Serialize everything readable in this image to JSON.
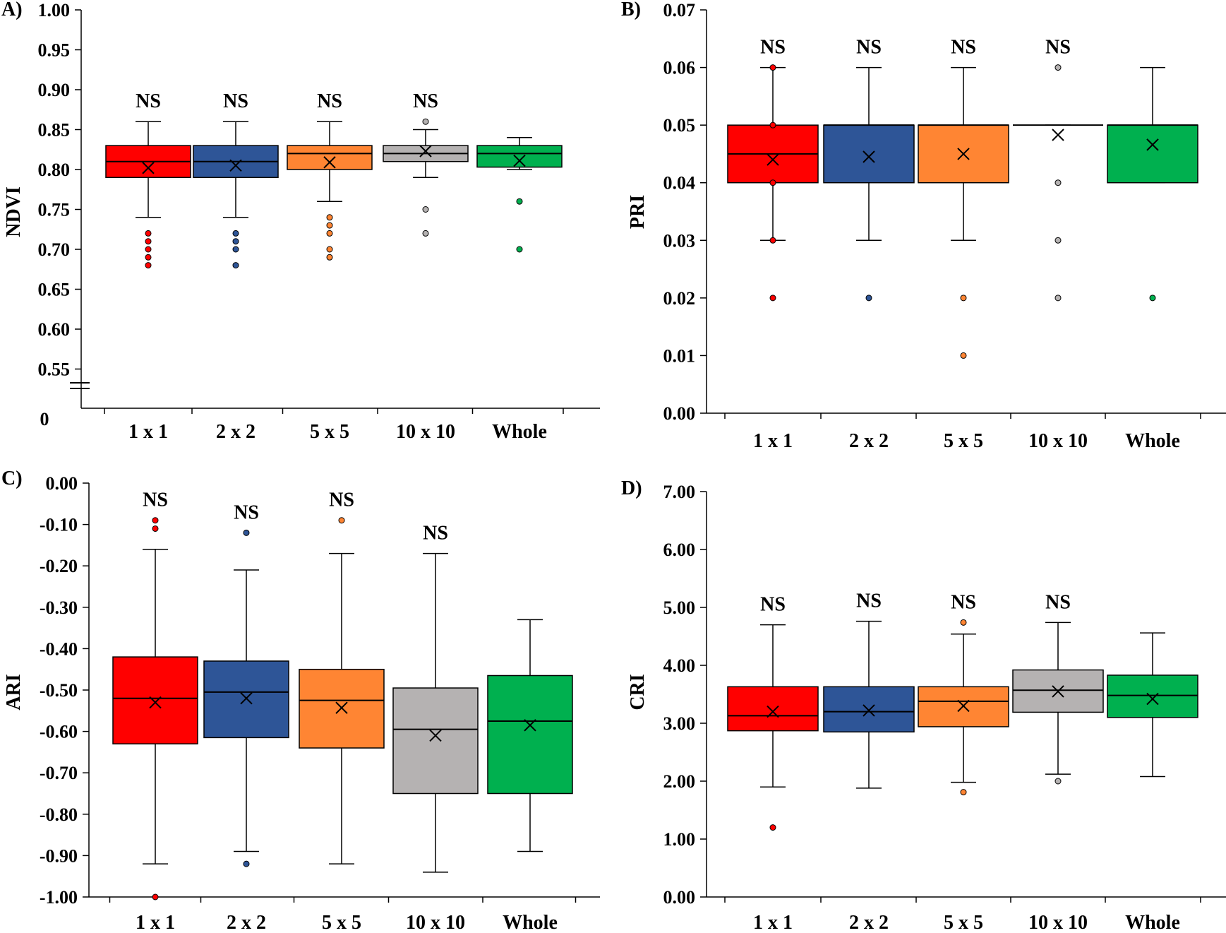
{
  "colors": {
    "1 x 1": "#ff0000",
    "2 x 2": "#2e5597",
    "5 x 5": "#ff8533",
    "10 x 10": "#b5b2b2",
    "Whole": "#00b04f"
  },
  "chart_data": [
    {
      "id": "A",
      "type": "box",
      "panel_label": "A)",
      "ylabel": "NDVI",
      "ylim": [
        0.5,
        1.0
      ],
      "yticks": [
        0.55,
        0.6,
        0.65,
        0.7,
        0.75,
        0.8,
        0.85,
        0.9,
        0.95,
        1.0
      ],
      "ytick_labels": [
        "0.55",
        "0.60",
        "0.65",
        "0.70",
        "0.75",
        "0.80",
        "0.85",
        "0.90",
        "0.95",
        "1.00"
      ],
      "axis_break": true,
      "axis_break_label": "0",
      "categories": [
        "1 x 1",
        "2 x 2",
        "5 x 5",
        "10 x 10",
        "Whole"
      ],
      "boxes": [
        {
          "category": "1 x 1",
          "whisker_low": 0.74,
          "q1": 0.79,
          "median": 0.81,
          "q3": 0.83,
          "whisker_high": 0.86,
          "mean": 0.802,
          "outliers": [
            0.72,
            0.71,
            0.7,
            0.69,
            0.68
          ],
          "annotation": "NS"
        },
        {
          "category": "2 x 2",
          "whisker_low": 0.74,
          "q1": 0.79,
          "median": 0.81,
          "q3": 0.83,
          "whisker_high": 0.86,
          "mean": 0.805,
          "outliers": [
            0.72,
            0.71,
            0.7,
            0.68
          ],
          "annotation": "NS"
        },
        {
          "category": "5 x 5",
          "whisker_low": 0.76,
          "q1": 0.8,
          "median": 0.82,
          "q3": 0.83,
          "whisker_high": 0.86,
          "mean": 0.809,
          "outliers": [
            0.74,
            0.73,
            0.72,
            0.7,
            0.69
          ],
          "annotation": "NS"
        },
        {
          "category": "10 x 10",
          "whisker_low": 0.79,
          "q1": 0.81,
          "median": 0.82,
          "q3": 0.83,
          "whisker_high": 0.85,
          "mean": 0.823,
          "outliers": [
            0.86,
            0.75,
            0.72
          ],
          "annotation": "NS"
        },
        {
          "category": "Whole",
          "whisker_low": 0.8,
          "q1": 0.803,
          "median": 0.82,
          "q3": 0.83,
          "whisker_high": 0.84,
          "mean": 0.811,
          "outliers": [
            0.76,
            0.7
          ],
          "annotation": ""
        }
      ]
    },
    {
      "id": "B",
      "type": "box",
      "panel_label": "B)",
      "ylabel": "PRI",
      "ylim": [
        0.0,
        0.07
      ],
      "yticks": [
        0.0,
        0.01,
        0.02,
        0.03,
        0.04,
        0.05,
        0.06,
        0.07
      ],
      "ytick_labels": [
        "0.00",
        "0.01",
        "0.02",
        "0.03",
        "0.04",
        "0.05",
        "0.06",
        "0.07"
      ],
      "categories": [
        "1 x 1",
        "2 x 2",
        "5 x 5",
        "10 x 10",
        "Whole"
      ],
      "boxes": [
        {
          "category": "1 x 1",
          "whisker_low": 0.03,
          "q1": 0.04,
          "median": 0.045,
          "q3": 0.05,
          "whisker_high": 0.06,
          "mean": 0.044,
          "outliers": [
            0.06,
            0.05,
            0.04,
            0.03,
            0.02
          ],
          "annotation": "NS"
        },
        {
          "category": "2 x 2",
          "whisker_low": 0.03,
          "q1": 0.04,
          "median": 0.05,
          "q3": 0.05,
          "whisker_high": 0.06,
          "mean": 0.0445,
          "outliers": [
            0.02
          ],
          "annotation": "NS"
        },
        {
          "category": "5 x 5",
          "whisker_low": 0.03,
          "q1": 0.04,
          "median": 0.05,
          "q3": 0.05,
          "whisker_high": 0.06,
          "mean": 0.045,
          "outliers": [
            0.02,
            0.01
          ],
          "annotation": "NS"
        },
        {
          "category": "10 x 10",
          "whisker_low": 0.05,
          "q1": 0.05,
          "median": 0.05,
          "q3": 0.05,
          "whisker_high": 0.05,
          "mean": 0.0483,
          "outliers": [
            0.06,
            0.04,
            0.03,
            0.02
          ],
          "annotation": "NS"
        },
        {
          "category": "Whole",
          "whisker_low": 0.04,
          "q1": 0.04,
          "median": 0.05,
          "q3": 0.05,
          "whisker_high": 0.06,
          "mean": 0.0466,
          "outliers": [
            0.02
          ],
          "annotation": ""
        }
      ]
    },
    {
      "id": "C",
      "type": "box",
      "panel_label": "C)",
      "ylabel": "ARI",
      "ylim": [
        -1.0,
        0.0
      ],
      "yticks": [
        0.0,
        -0.1,
        -0.2,
        -0.3,
        -0.4,
        -0.5,
        -0.6,
        -0.7,
        -0.8,
        -0.9,
        -1.0
      ],
      "ytick_labels": [
        "0.00",
        "-0.10",
        "-0.20",
        "-0.30",
        "-0.40",
        "-0.50",
        "-0.60",
        "-0.70",
        "-0.80",
        "-0.90",
        "-1.00"
      ],
      "categories": [
        "1 x 1",
        "2 x 2",
        "5 x 5",
        "10 x 10",
        "Whole"
      ],
      "boxes": [
        {
          "category": "1 x 1",
          "whisker_low": -0.92,
          "q1": -0.63,
          "median": -0.52,
          "q3": -0.42,
          "whisker_high": -0.16,
          "mean": -0.53,
          "outliers": [
            -0.09,
            -0.11,
            -1.0
          ],
          "annotation": "NS"
        },
        {
          "category": "2 x 2",
          "whisker_low": -0.89,
          "q1": -0.615,
          "median": -0.505,
          "q3": -0.43,
          "whisker_high": -0.21,
          "mean": -0.52,
          "outliers": [
            -0.12,
            -0.92
          ],
          "annotation": "NS"
        },
        {
          "category": "5 x 5",
          "whisker_low": -0.92,
          "q1": -0.64,
          "median": -0.525,
          "q3": -0.45,
          "whisker_high": -0.17,
          "mean": -0.543,
          "outliers": [
            -0.09
          ],
          "annotation": "NS"
        },
        {
          "category": "10 x 10",
          "whisker_low": -0.94,
          "q1": -0.75,
          "median": -0.595,
          "q3": -0.495,
          "whisker_high": -0.17,
          "mean": -0.61,
          "outliers": [],
          "annotation": "NS"
        },
        {
          "category": "Whole",
          "whisker_low": -0.89,
          "q1": -0.75,
          "median": -0.575,
          "q3": -0.465,
          "whisker_high": -0.33,
          "mean": -0.585,
          "outliers": [],
          "annotation": ""
        }
      ]
    },
    {
      "id": "D",
      "type": "box",
      "panel_label": "D)",
      "ylabel": "CRI",
      "ylim": [
        0.0,
        7.0
      ],
      "yticks": [
        0,
        1,
        2,
        3,
        4,
        5,
        6,
        7
      ],
      "ytick_labels": [
        "0.00",
        "1.00",
        "2.00",
        "3.00",
        "4.00",
        "5.00",
        "6.00",
        "7.00"
      ],
      "categories": [
        "1 x 1",
        "2 x 2",
        "5 x 5",
        "10 x 10",
        "Whole"
      ],
      "boxes": [
        {
          "category": "1 x 1",
          "whisker_low": 1.9,
          "q1": 2.87,
          "median": 3.13,
          "q3": 3.63,
          "whisker_high": 4.7,
          "mean": 3.2,
          "outliers": [
            1.2
          ],
          "annotation": "NS"
        },
        {
          "category": "2 x 2",
          "whisker_low": 1.88,
          "q1": 2.85,
          "median": 3.2,
          "q3": 3.63,
          "whisker_high": 4.76,
          "mean": 3.22,
          "outliers": [],
          "annotation": "NS"
        },
        {
          "category": "5 x 5",
          "whisker_low": 1.98,
          "q1": 2.94,
          "median": 3.38,
          "q3": 3.63,
          "whisker_high": 4.54,
          "mean": 3.3,
          "outliers": [
            4.74,
            1.81
          ],
          "annotation": "NS"
        },
        {
          "category": "10 x 10",
          "whisker_low": 2.12,
          "q1": 3.19,
          "median": 3.57,
          "q3": 3.92,
          "whisker_high": 4.74,
          "mean": 3.55,
          "outliers": [
            2.0
          ],
          "annotation": "NS"
        },
        {
          "category": "Whole",
          "whisker_low": 2.08,
          "q1": 3.1,
          "median": 3.48,
          "q3": 3.83,
          "whisker_high": 4.56,
          "mean": 3.42,
          "outliers": [],
          "annotation": ""
        }
      ]
    }
  ]
}
